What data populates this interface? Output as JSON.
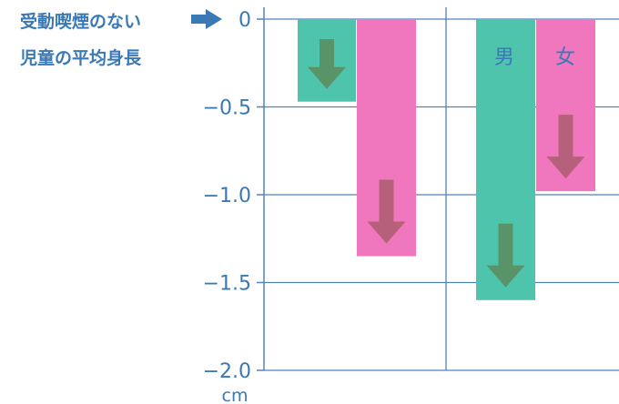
{
  "chart_data": {
    "type": "bar",
    "annotation": {
      "line1": "受動喫煙のない",
      "line2": "児童の平均身長"
    },
    "y_unit": "cm",
    "ylim": [
      -2.0,
      0
    ],
    "y_ticks": [
      0,
      -0.5,
      -1.0,
      -1.5,
      -2.0
    ],
    "y_tick_labels": [
      "0",
      "−0.5",
      "−1.0",
      "−1.5",
      "−2.0"
    ],
    "grid": true,
    "series": [
      {
        "name": "男",
        "values": [
          -0.47,
          -1.6
        ]
      },
      {
        "name": "女",
        "values": [
          -1.35,
          -0.98
        ]
      }
    ],
    "groups": 2,
    "legend_position": "inside-right-group-top"
  },
  "colors": {
    "boys": "#4ec4ac",
    "girls": "#f077bd",
    "text": "#3a79b6",
    "grid": "#4f83bd",
    "arrow_boys": "#5b8f60",
    "arrow_girls": "#b05d74"
  }
}
